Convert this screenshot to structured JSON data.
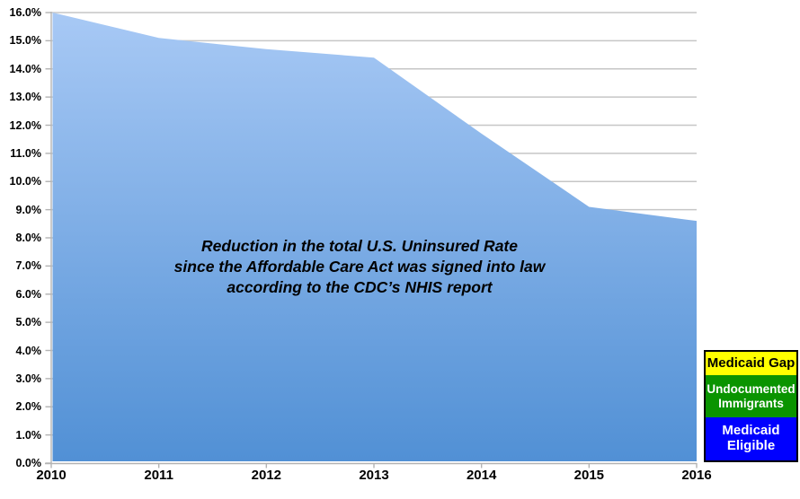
{
  "chart_data": {
    "type": "area",
    "series_name": "Total U.S. Uninsured Rate",
    "x": [
      2010,
      2011,
      2012,
      2013,
      2014,
      2015,
      2016
    ],
    "values": [
      16.0,
      15.1,
      14.7,
      14.4,
      11.7,
      9.1,
      8.6
    ],
    "xlabel": "",
    "ylabel": "",
    "ylim": [
      0,
      16
    ],
    "ytick_step": 1,
    "ytick_labels": [
      "0.0%",
      "1.0%",
      "2.0%",
      "3.0%",
      "4.0%",
      "5.0%",
      "6.0%",
      "7.0%",
      "8.0%",
      "9.0%",
      "10.0%",
      "11.0%",
      "12.0%",
      "13.0%",
      "14.0%",
      "15.0%",
      "16.0%"
    ],
    "xtick_labels": [
      "2010",
      "2011",
      "2012",
      "2013",
      "2014",
      "2015",
      "2016"
    ],
    "grid": "horizontal",
    "legend_position": "bottom-right",
    "title": "Reduction in the total U.S. Uninsured Rate since the Affordable Care Act was signed into law according to the CDC’s NHIS report"
  },
  "annotation": {
    "lines": [
      "Reduction in the total U.S. Uninsured Rate",
      "since the Affordable Care Act was signed into law",
      "according to the CDC’s NHIS report"
    ]
  },
  "legend": {
    "border_color": "#000000",
    "items": [
      {
        "label": "Medicaid Gap",
        "bg": "#ffff00",
        "text_color": "#000000"
      },
      {
        "label": "Undocumented Immigrants",
        "bg": "#0a9400",
        "text_color": "#ffffff"
      },
      {
        "label": "Medicaid Eligible",
        "bg": "#0000ff",
        "text_color": "#ffffff"
      }
    ]
  },
  "colors": {
    "area_gradient_top": "#a8c9f5",
    "area_gradient_bottom": "#5190d5",
    "gridline": "#c6c6c6",
    "axis": "#b3b3b3",
    "label_text": "#000000",
    "background": "#ffffff"
  }
}
